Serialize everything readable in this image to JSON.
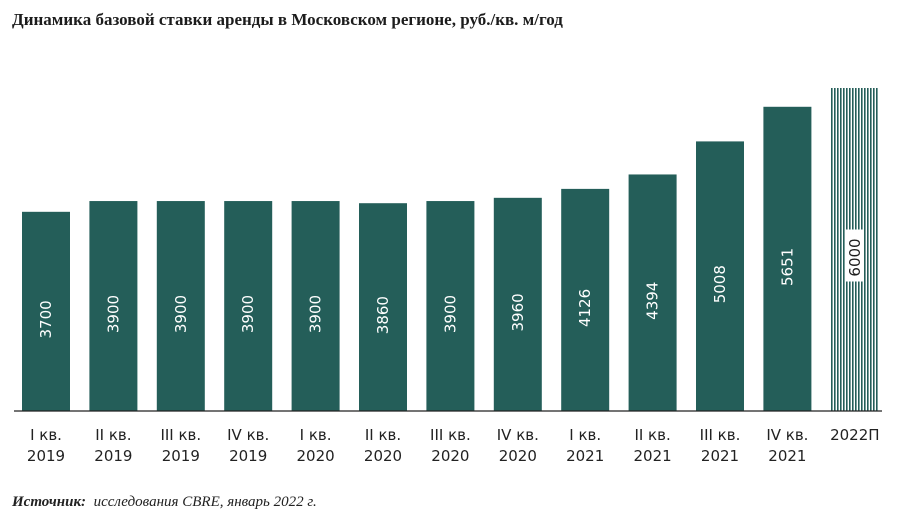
{
  "chart_data": {
    "type": "bar",
    "title": "Динамика базовой ставки аренды в Московском регионе, руб./кв. м/год",
    "categories": [
      [
        "I кв.",
        "2019"
      ],
      [
        "II кв.",
        "2019"
      ],
      [
        "III кв.",
        "2019"
      ],
      [
        "IV кв.",
        "2019"
      ],
      [
        "I кв.",
        "2020"
      ],
      [
        "II кв.",
        "2020"
      ],
      [
        "III кв.",
        "2020"
      ],
      [
        "IV кв.",
        "2020"
      ],
      [
        "I кв.",
        "2021"
      ],
      [
        "II кв.",
        "2021"
      ],
      [
        "III кв.",
        "2021"
      ],
      [
        "IV кв.",
        "2021"
      ],
      [
        "2022П"
      ]
    ],
    "values": [
      3700,
      3900,
      3900,
      3900,
      3900,
      3860,
      3900,
      3960,
      4126,
      4394,
      5008,
      5651,
      6000
    ],
    "forecast_index": 12,
    "ylim": [
      0,
      6000
    ],
    "grid": false,
    "legend": "none",
    "colors": {
      "bar": "#245e59",
      "forecast_stripe": "#245e59",
      "label_text": "#ffffff",
      "forecast_label_bg": "#ffffff",
      "forecast_label_text": "#1c1c1c"
    }
  },
  "source": {
    "label": "Источник:",
    "text": "исследования CBRE, январь 2022 г."
  }
}
